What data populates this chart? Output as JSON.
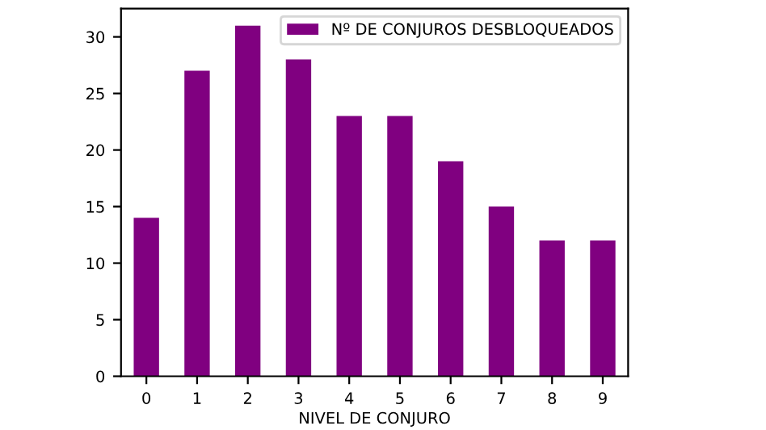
{
  "chart_data": {
    "type": "bar",
    "xlabel": "NIVEL DE CONJURO",
    "categories": [
      "0",
      "1",
      "2",
      "3",
      "4",
      "5",
      "6",
      "7",
      "8",
      "9"
    ],
    "series": [
      {
        "name": "Nº DE CONJUROS DESBLOQUEADOS",
        "color": "#800080",
        "values": [
          14,
          27,
          31,
          28,
          23,
          23,
          19,
          15,
          12,
          12
        ]
      }
    ],
    "ylim": [
      0,
      32.5
    ],
    "yticks": [
      0,
      5,
      10,
      15,
      20,
      25,
      30
    ],
    "legend": "top right",
    "grid": false
  }
}
